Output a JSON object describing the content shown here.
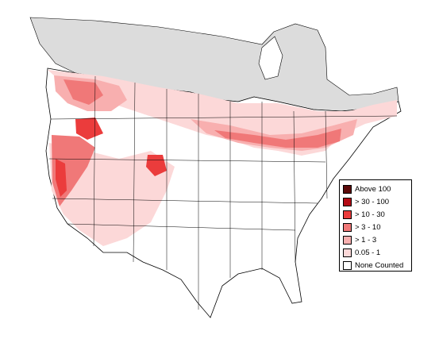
{
  "legend": {
    "items": [
      {
        "label": "Above 100",
        "color": "#5c0a0a"
      },
      {
        "label": "> 30 - 100",
        "color": "#b40a14"
      },
      {
        "label": "> 10 - 30",
        "color": "#eb3c3c"
      },
      {
        "label": "> 3 - 10",
        "color": "#f07878"
      },
      {
        "label": "> 1 - 3",
        "color": "#f8afaf"
      },
      {
        "label": "0.05 - 1",
        "color": "#fcd8d8"
      },
      {
        "label": "None Counted",
        "color": "#ffffff"
      }
    ]
  },
  "colors": {
    "no_data": "#dcdcdc",
    "boundary": "#000000"
  }
}
